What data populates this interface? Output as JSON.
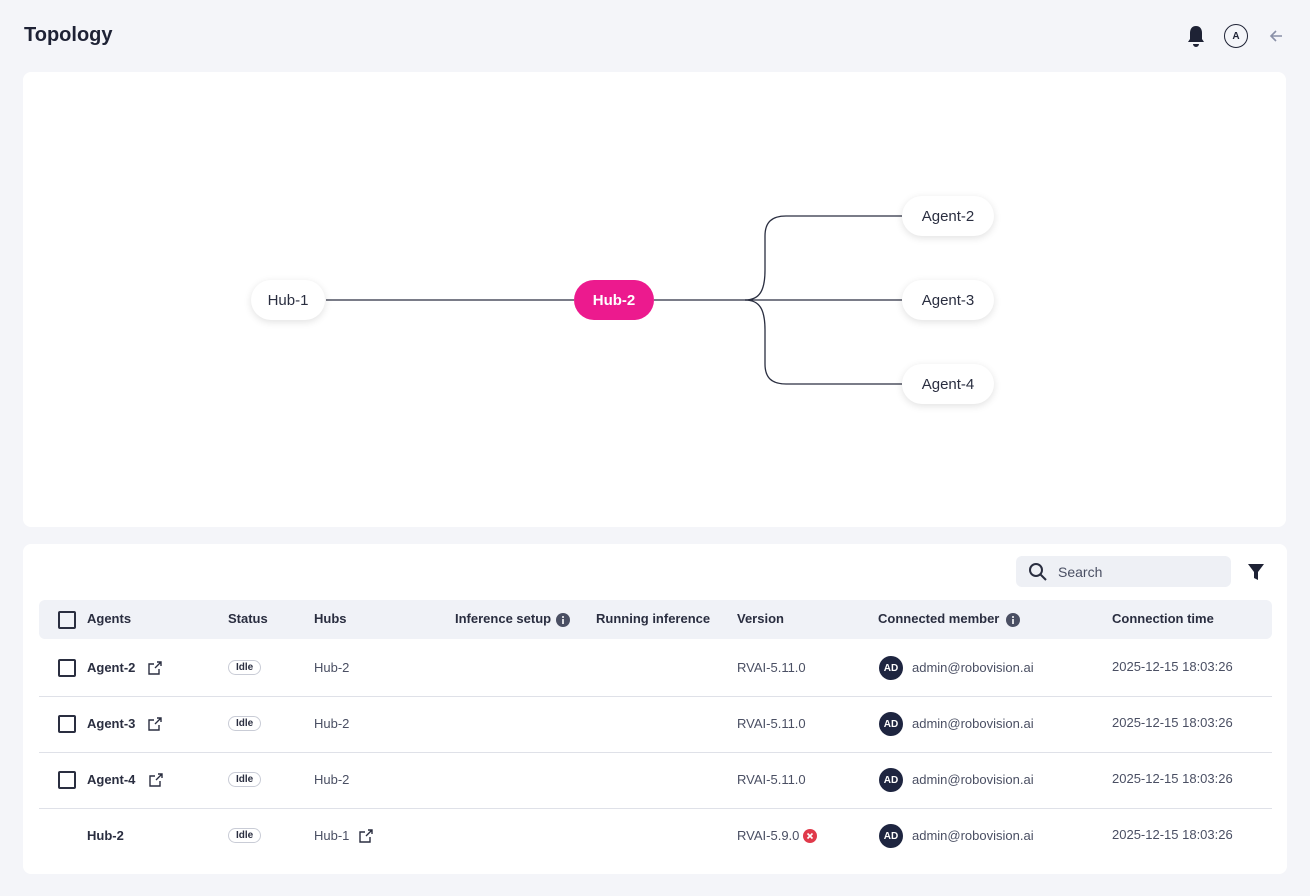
{
  "header": {
    "title": "Topology",
    "avatar": "A"
  },
  "topology": {
    "nodes": [
      {
        "label": "Hub-1"
      },
      {
        "label": "Hub-2"
      },
      {
        "label": "Agent-2"
      },
      {
        "label": "Agent-3"
      },
      {
        "label": "Agent-4"
      }
    ]
  },
  "search": {
    "placeholder": "Search"
  },
  "table": {
    "columns": [
      "Agents",
      "Status",
      "Hubs",
      "Inference setup",
      "Running inference",
      "Version",
      "Connected member",
      "Connection time"
    ],
    "rows": [
      {
        "agent": "Agent-2",
        "status": "Idle",
        "hub": "Hub-2",
        "version": "RVAI-5.11.0",
        "initials": "AD",
        "member": "admin@robovision.ai",
        "time": "2025-12-15 18:03:26"
      },
      {
        "agent": "Agent-3",
        "status": "Idle",
        "hub": "Hub-2",
        "version": "RVAI-5.11.0",
        "initials": "AD",
        "member": "admin@robovision.ai",
        "time": "2025-12-15 18:03:26"
      },
      {
        "agent": "Agent-4",
        "status": "Idle",
        "hub": "Hub-2",
        "version": "RVAI-5.11.0",
        "initials": "AD",
        "member": "admin@robovision.ai",
        "time": "2025-12-15 18:03:26"
      },
      {
        "agent": "Hub-2",
        "status": "Idle",
        "hub": "Hub-1",
        "version": "RVAI-5.9.0",
        "initials": "AD",
        "member": "admin@robovision.ai",
        "time": "2025-12-15 18:03:26"
      }
    ]
  }
}
